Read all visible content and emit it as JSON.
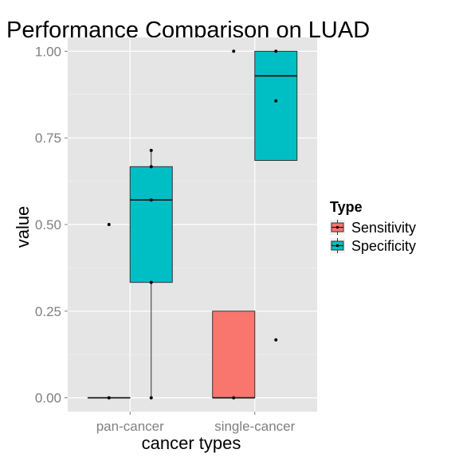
{
  "chart_data": {
    "type": "box",
    "title": "Performance Comparison on LUAD",
    "xlabel": "cancer types",
    "ylabel": "value",
    "ylim": [
      -0.04,
      1.04
    ],
    "yticks": [
      0.0,
      0.25,
      0.5,
      0.75,
      1.0
    ],
    "ytick_labels": [
      "0.00",
      "0.25",
      "0.50",
      "0.75",
      "1.00"
    ],
    "categories": [
      "pan-cancer",
      "single-cancer"
    ],
    "grid": true,
    "legend": {
      "title": "Type",
      "position": "right"
    },
    "series": [
      {
        "name": "Sensitivity",
        "color": "#F8766D",
        "boxes": [
          {
            "category": "pan-cancer",
            "q1": 0.0,
            "median": 0.0,
            "q3": 0.0,
            "whisker_low": 0.0,
            "whisker_high": 0.0,
            "points": [
              0.0,
              0.5
            ]
          },
          {
            "category": "single-cancer",
            "q1": 0.0,
            "median": 0.0,
            "q3": 0.25,
            "whisker_low": 0.0,
            "whisker_high": 0.25,
            "points": [
              0.0,
              1.0
            ]
          }
        ]
      },
      {
        "name": "Specificity",
        "color": "#00BFC4",
        "boxes": [
          {
            "category": "pan-cancer",
            "q1": 0.333,
            "median": 0.571,
            "q3": 0.667,
            "whisker_low": 0.0,
            "whisker_high": 0.714,
            "points": [
              0.0,
              0.333,
              0.571,
              0.667,
              0.714
            ]
          },
          {
            "category": "single-cancer",
            "q1": 0.685,
            "median": 0.929,
            "q3": 1.0,
            "whisker_low": 0.685,
            "whisker_high": 1.0,
            "points": [
              0.167,
              0.857,
              1.0
            ]
          }
        ]
      }
    ]
  }
}
